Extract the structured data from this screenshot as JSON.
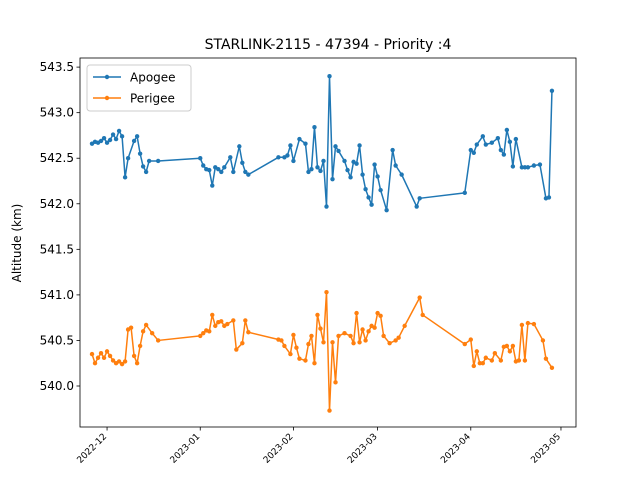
{
  "chart_data": {
    "type": "line",
    "title": "STARLINK-2115 - 47394 - Priority :4",
    "xlabel": "",
    "ylabel": "Altitude (km)",
    "x_is_date": true,
    "xlim": [
      "2022-11-22",
      "2023-05-06"
    ],
    "ylim": [
      539.55,
      543.6
    ],
    "x_ticks": [
      {
        "date": "2022-12-01",
        "label": "2022-12"
      },
      {
        "date": "2023-01-01",
        "label": "2023-01"
      },
      {
        "date": "2023-02-01",
        "label": "2023-02"
      },
      {
        "date": "2023-03-01",
        "label": "2023-03"
      },
      {
        "date": "2023-04-01",
        "label": "2023-04"
      },
      {
        "date": "2023-05-01",
        "label": "2023-05"
      }
    ],
    "y_ticks": [
      "540.0",
      "540.5",
      "541.0",
      "541.5",
      "542.0",
      "542.5",
      "543.0",
      "543.5"
    ],
    "grid": false,
    "legend": {
      "position": "top-left"
    },
    "series": [
      {
        "name": "Apogee",
        "color": "#1f77b4",
        "marker": "circle",
        "points": [
          [
            "2022-11-26",
            542.66
          ],
          [
            "2022-11-27",
            542.68
          ],
          [
            "2022-11-28",
            542.67
          ],
          [
            "2022-11-29",
            542.69
          ],
          [
            "2022-11-30",
            542.72
          ],
          [
            "2022-12-01",
            542.67
          ],
          [
            "2022-12-02",
            542.7
          ],
          [
            "2022-12-03",
            542.76
          ],
          [
            "2022-12-04",
            542.71
          ],
          [
            "2022-12-05",
            542.8
          ],
          [
            "2022-12-06",
            542.74
          ],
          [
            "2022-12-07",
            542.29
          ],
          [
            "2022-12-08",
            542.5
          ],
          [
            "2022-12-10",
            542.69
          ],
          [
            "2022-12-11",
            542.74
          ],
          [
            "2022-12-12",
            542.55
          ],
          [
            "2022-12-13",
            542.41
          ],
          [
            "2022-12-14",
            542.35
          ],
          [
            "2022-12-15",
            542.47
          ],
          [
            "2022-12-18",
            542.47
          ],
          [
            "2023-01-01",
            542.5
          ],
          [
            "2023-01-02",
            542.42
          ],
          [
            "2023-01-03",
            542.38
          ],
          [
            "2023-01-04",
            542.37
          ],
          [
            "2023-01-05",
            542.2
          ],
          [
            "2023-01-06",
            542.4
          ],
          [
            "2023-01-07",
            542.38
          ],
          [
            "2023-01-08",
            542.35
          ],
          [
            "2023-01-09",
            542.4
          ],
          [
            "2023-01-11",
            542.51
          ],
          [
            "2023-01-12",
            542.35
          ],
          [
            "2023-01-14",
            542.63
          ],
          [
            "2023-01-15",
            542.45
          ],
          [
            "2023-01-16",
            542.35
          ],
          [
            "2023-01-17",
            542.32
          ],
          [
            "2023-01-27",
            542.51
          ],
          [
            "2023-01-29",
            542.51
          ],
          [
            "2023-01-30",
            542.53
          ],
          [
            "2023-01-31",
            542.64
          ],
          [
            "2023-02-01",
            542.47
          ],
          [
            "2023-02-03",
            542.71
          ],
          [
            "2023-02-05",
            542.66
          ],
          [
            "2023-02-06",
            542.35
          ],
          [
            "2023-02-07",
            542.38
          ],
          [
            "2023-02-08",
            542.84
          ],
          [
            "2023-02-09",
            542.4
          ],
          [
            "2023-02-10",
            542.36
          ],
          [
            "2023-02-11",
            542.47
          ],
          [
            "2023-02-12",
            541.97
          ],
          [
            "2023-02-13",
            543.4
          ],
          [
            "2023-02-14",
            542.27
          ],
          [
            "2023-02-15",
            542.63
          ],
          [
            "2023-02-16",
            542.58
          ],
          [
            "2023-02-18",
            542.47
          ],
          [
            "2023-02-19",
            542.37
          ],
          [
            "2023-02-20",
            542.29
          ],
          [
            "2023-02-21",
            542.46
          ],
          [
            "2023-02-22",
            542.44
          ],
          [
            "2023-02-23",
            542.64
          ],
          [
            "2023-02-24",
            542.32
          ],
          [
            "2023-02-25",
            542.16
          ],
          [
            "2023-02-26",
            542.07
          ],
          [
            "2023-02-27",
            541.99
          ],
          [
            "2023-02-28",
            542.43
          ],
          [
            "2023-03-01",
            542.3
          ],
          [
            "2023-03-02",
            542.15
          ],
          [
            "2023-03-04",
            541.93
          ],
          [
            "2023-03-06",
            542.59
          ],
          [
            "2023-03-07",
            542.42
          ],
          [
            "2023-03-09",
            542.32
          ],
          [
            "2023-03-14",
            541.97
          ],
          [
            "2023-03-15",
            542.06
          ],
          [
            "2023-03-30",
            542.12
          ],
          [
            "2023-04-01",
            542.59
          ],
          [
            "2023-04-02",
            542.56
          ],
          [
            "2023-04-03",
            542.65
          ],
          [
            "2023-04-05",
            542.74
          ],
          [
            "2023-04-06",
            542.65
          ],
          [
            "2023-04-08",
            542.67
          ],
          [
            "2023-04-10",
            542.72
          ],
          [
            "2023-04-11",
            542.59
          ],
          [
            "2023-04-12",
            542.54
          ],
          [
            "2023-04-13",
            542.81
          ],
          [
            "2023-04-14",
            542.68
          ],
          [
            "2023-04-15",
            542.41
          ],
          [
            "2023-04-16",
            542.71
          ],
          [
            "2023-04-18",
            542.4
          ],
          [
            "2023-04-19",
            542.4
          ],
          [
            "2023-04-20",
            542.4
          ],
          [
            "2023-04-22",
            542.42
          ],
          [
            "2023-04-24",
            542.43
          ],
          [
            "2023-04-26",
            542.06
          ],
          [
            "2023-04-27",
            542.07
          ],
          [
            "2023-04-28",
            543.24
          ]
        ]
      },
      {
        "name": "Perigee",
        "color": "#ff7f0e",
        "marker": "circle",
        "points": [
          [
            "2022-11-26",
            540.35
          ],
          [
            "2022-11-27",
            540.25
          ],
          [
            "2022-11-28",
            540.31
          ],
          [
            "2022-11-29",
            540.36
          ],
          [
            "2022-11-30",
            540.31
          ],
          [
            "2022-12-01",
            540.38
          ],
          [
            "2022-12-02",
            540.33
          ],
          [
            "2022-12-03",
            540.28
          ],
          [
            "2022-12-04",
            540.25
          ],
          [
            "2022-12-05",
            540.27
          ],
          [
            "2022-12-06",
            540.24
          ],
          [
            "2022-12-07",
            540.27
          ],
          [
            "2022-12-08",
            540.62
          ],
          [
            "2022-12-09",
            540.64
          ],
          [
            "2022-12-10",
            540.33
          ],
          [
            "2022-12-11",
            540.25
          ],
          [
            "2022-12-12",
            540.44
          ],
          [
            "2022-12-13",
            540.6
          ],
          [
            "2022-12-14",
            540.67
          ],
          [
            "2022-12-16",
            540.58
          ],
          [
            "2022-12-18",
            540.5
          ],
          [
            "2023-01-01",
            540.55
          ],
          [
            "2023-01-02",
            540.58
          ],
          [
            "2023-01-03",
            540.61
          ],
          [
            "2023-01-04",
            540.6
          ],
          [
            "2023-01-05",
            540.78
          ],
          [
            "2023-01-06",
            540.66
          ],
          [
            "2023-01-07",
            540.7
          ],
          [
            "2023-01-08",
            540.71
          ],
          [
            "2023-01-09",
            540.66
          ],
          [
            "2023-01-10",
            540.68
          ],
          [
            "2023-01-12",
            540.72
          ],
          [
            "2023-01-13",
            540.4
          ],
          [
            "2023-01-15",
            540.47
          ],
          [
            "2023-01-16",
            540.72
          ],
          [
            "2023-01-17",
            540.59
          ],
          [
            "2023-01-27",
            540.51
          ],
          [
            "2023-01-28",
            540.5
          ],
          [
            "2023-01-29",
            540.44
          ],
          [
            "2023-01-31",
            540.35
          ],
          [
            "2023-02-01",
            540.56
          ],
          [
            "2023-02-02",
            540.42
          ],
          [
            "2023-02-03",
            540.3
          ],
          [
            "2023-02-05",
            540.28
          ],
          [
            "2023-02-06",
            540.46
          ],
          [
            "2023-02-07",
            540.55
          ],
          [
            "2023-02-08",
            540.25
          ],
          [
            "2023-02-09",
            540.78
          ],
          [
            "2023-02-10",
            540.63
          ],
          [
            "2023-02-11",
            540.48
          ],
          [
            "2023-02-12",
            541.03
          ],
          [
            "2023-02-13",
            539.73
          ],
          [
            "2023-02-14",
            540.48
          ],
          [
            "2023-02-15",
            540.04
          ],
          [
            "2023-02-16",
            540.55
          ],
          [
            "2023-02-18",
            540.58
          ],
          [
            "2023-02-20",
            540.55
          ],
          [
            "2023-02-21",
            540.47
          ],
          [
            "2023-02-22",
            540.8
          ],
          [
            "2023-02-23",
            540.48
          ],
          [
            "2023-02-24",
            540.62
          ],
          [
            "2023-02-25",
            540.5
          ],
          [
            "2023-02-26",
            540.6
          ],
          [
            "2023-02-27",
            540.66
          ],
          [
            "2023-02-28",
            540.64
          ],
          [
            "2023-03-01",
            540.8
          ],
          [
            "2023-03-02",
            540.77
          ],
          [
            "2023-03-03",
            540.55
          ],
          [
            "2023-03-05",
            540.47
          ],
          [
            "2023-03-07",
            540.5
          ],
          [
            "2023-03-08",
            540.53
          ],
          [
            "2023-03-10",
            540.66
          ],
          [
            "2023-03-15",
            540.97
          ],
          [
            "2023-03-16",
            540.78
          ],
          [
            "2023-03-30",
            540.46
          ],
          [
            "2023-04-01",
            540.51
          ],
          [
            "2023-04-02",
            540.22
          ],
          [
            "2023-04-03",
            540.38
          ],
          [
            "2023-04-04",
            540.25
          ],
          [
            "2023-04-05",
            540.25
          ],
          [
            "2023-04-06",
            540.31
          ],
          [
            "2023-04-08",
            540.28
          ],
          [
            "2023-04-09",
            540.36
          ],
          [
            "2023-04-11",
            540.28
          ],
          [
            "2023-04-12",
            540.43
          ],
          [
            "2023-04-13",
            540.44
          ],
          [
            "2023-04-14",
            540.38
          ],
          [
            "2023-04-15",
            540.44
          ],
          [
            "2023-04-16",
            540.27
          ],
          [
            "2023-04-17",
            540.28
          ],
          [
            "2023-04-18",
            540.67
          ],
          [
            "2023-04-19",
            540.28
          ],
          [
            "2023-04-20",
            540.69
          ],
          [
            "2023-04-22",
            540.68
          ],
          [
            "2023-04-25",
            540.5
          ],
          [
            "2023-04-26",
            540.3
          ],
          [
            "2023-04-28",
            540.2
          ]
        ]
      }
    ]
  }
}
